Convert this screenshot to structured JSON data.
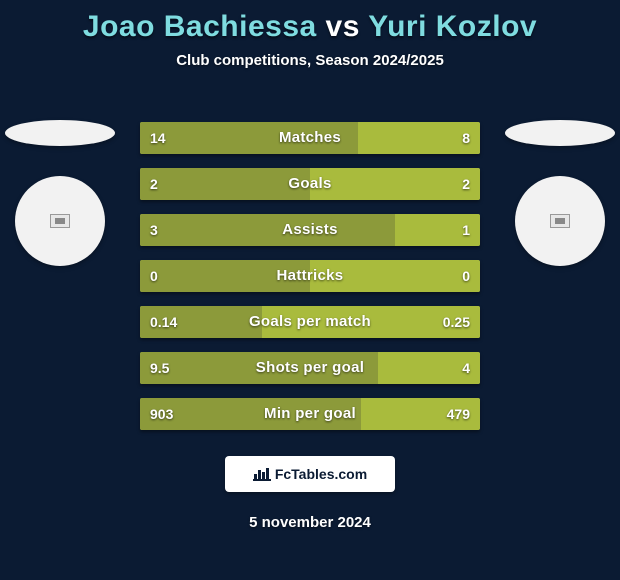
{
  "background_color": "#0b1b33",
  "title": {
    "player1": "Joao Bachiessa",
    "vs": "vs",
    "player2": "Yuri Kozlov",
    "color_players": "#7fdce0",
    "color_vs": "#ffffff",
    "fontsize": 30
  },
  "subtitle": {
    "text": "Club competitions, Season 2024/2025",
    "color": "#ffffff",
    "fontsize": 15
  },
  "badges": {
    "ellipse_color": "#f2f2f2",
    "circle_color": "#f2f2f2"
  },
  "bars": {
    "color_left": "#8c9a3a",
    "color_right": "#a9bb3d",
    "track_color": "#8c9a3a",
    "label_color": "#ffffff",
    "value_color": "#ffffff",
    "label_fontsize": 15,
    "value_fontsize": 14,
    "rows": [
      {
        "label": "Matches",
        "left_val": "14",
        "right_val": "8",
        "left_pct": 64,
        "right_pct": 36
      },
      {
        "label": "Goals",
        "left_val": "2",
        "right_val": "2",
        "left_pct": 50,
        "right_pct": 50
      },
      {
        "label": "Assists",
        "left_val": "3",
        "right_val": "1",
        "left_pct": 75,
        "right_pct": 25
      },
      {
        "label": "Hattricks",
        "left_val": "0",
        "right_val": "0",
        "left_pct": 50,
        "right_pct": 50
      },
      {
        "label": "Goals per match",
        "left_val": "0.14",
        "right_val": "0.25",
        "left_pct": 36,
        "right_pct": 64
      },
      {
        "label": "Shots per goal",
        "left_val": "9.5",
        "right_val": "4",
        "left_pct": 70,
        "right_pct": 30
      },
      {
        "label": "Min per goal",
        "left_val": "903",
        "right_val": "479",
        "left_pct": 65,
        "right_pct": 35
      }
    ]
  },
  "logo": {
    "text": "FcTables.com",
    "bg": "#ffffff",
    "fg": "#0b1b33",
    "fontsize": 14
  },
  "date": {
    "text": "5 november 2024",
    "color": "#ffffff",
    "fontsize": 15
  }
}
